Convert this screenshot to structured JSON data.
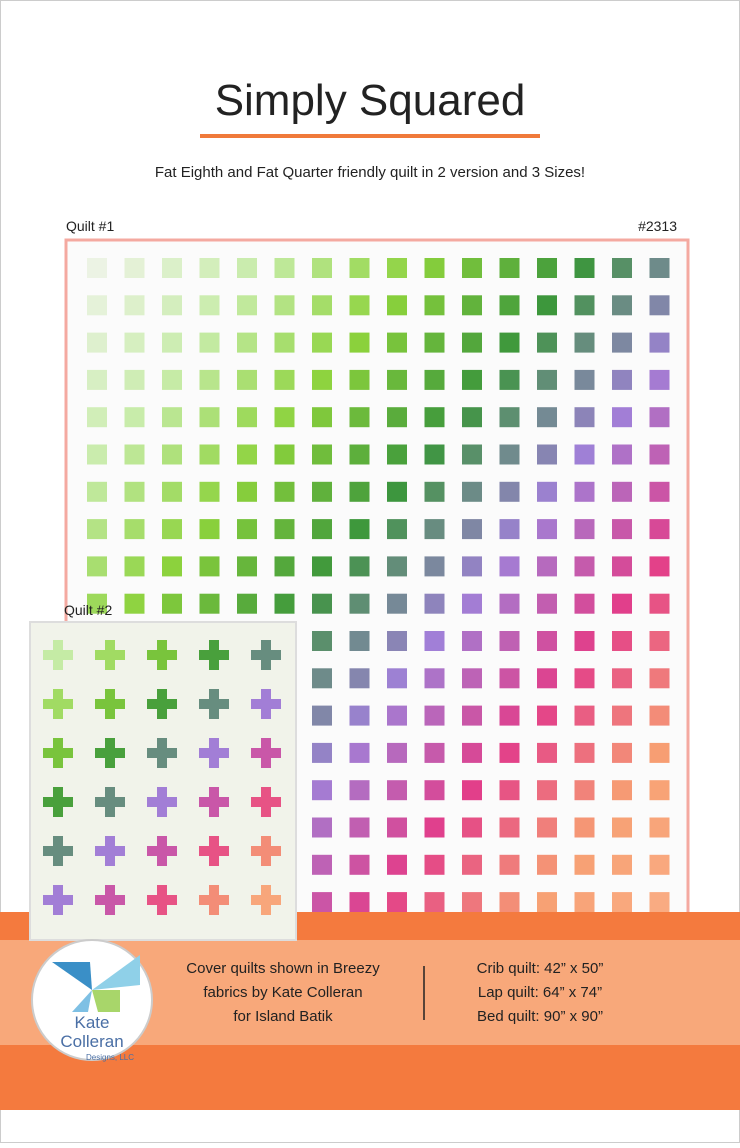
{
  "header": {
    "title": "Simply Squared",
    "subtitle": "Fat Eighth and Fat Quarter friendly quilt in 2 version and 3 Sizes!"
  },
  "quilt1": {
    "label": "Quilt #1",
    "pattern_number": "#2313"
  },
  "quilt2": {
    "label": "Quilt #2"
  },
  "footer": {
    "logo": [
      "Kate",
      "Colleran",
      "Designs, LLC"
    ],
    "fabric_note": [
      "Cover quilts shown in Breezy",
      "fabrics by Kate Colleran",
      "for Island Batik"
    ],
    "sizes": [
      "Crib quilt: 42” x 50”",
      "Lap quilt: 64” x 74”",
      "Bed quilt: 90” x 90”"
    ]
  }
}
